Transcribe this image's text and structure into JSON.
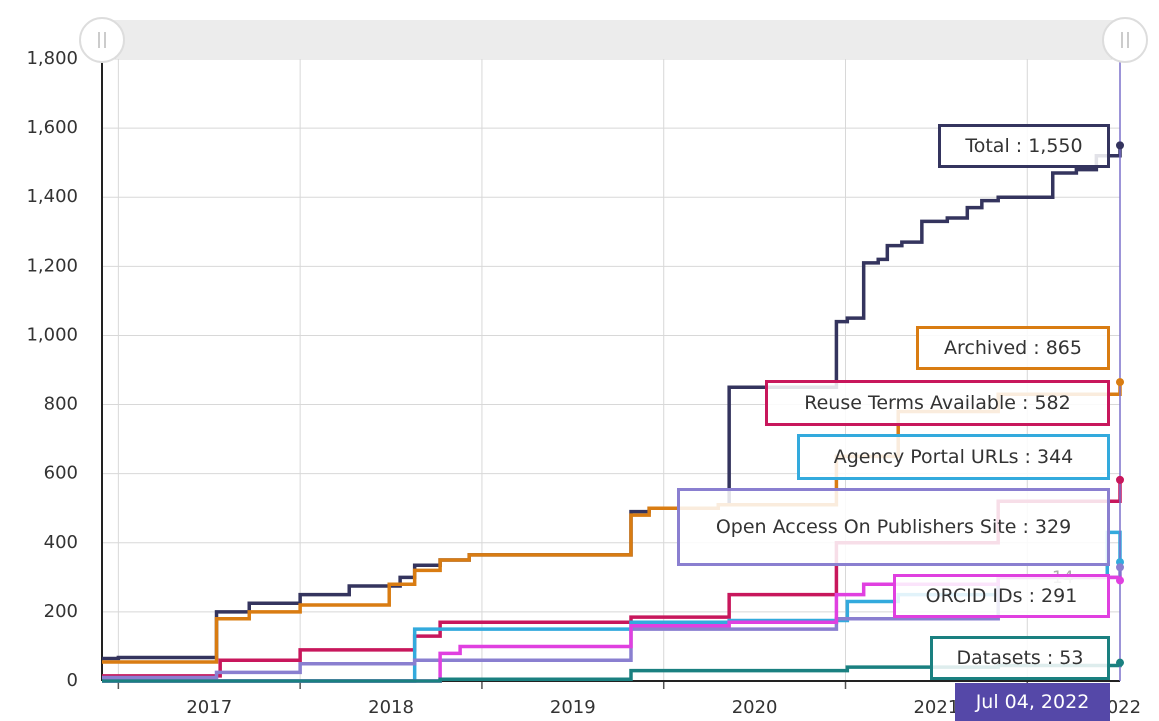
{
  "chart_data": {
    "type": "line",
    "step": true,
    "separator": " : ",
    "crosshair_label": "Jul 04, 2022",
    "annotation": "14",
    "xlim": [
      2016.91,
      2022.51
    ],
    "xticks": [
      {
        "value": 2017.5,
        "label": "2017"
      },
      {
        "value": 2018.5,
        "label": "2018"
      },
      {
        "value": 2019.5,
        "label": "2019"
      },
      {
        "value": 2020.5,
        "label": "2020"
      },
      {
        "value": 2021.5,
        "label": "2021"
      },
      {
        "value": 2022.5,
        "label": "2022"
      }
    ],
    "xgrid": [
      2017,
      2018,
      2019,
      2020,
      2021,
      2022
    ],
    "ylim": [
      0,
      1800
    ],
    "yticks": [
      0,
      200,
      400,
      600,
      800,
      {
        "value": 1000,
        "label": "1,000"
      },
      {
        "value": 1200,
        "label": "1,200"
      },
      {
        "value": 1400,
        "label": "1,400"
      },
      {
        "value": 1600,
        "label": "1,600"
      },
      {
        "value": 1800,
        "label": "1,800"
      }
    ],
    "grid": true,
    "series": [
      {
        "name": "Total",
        "color": "#34345e",
        "last_label": "1,550",
        "x": [
          2016.91,
          2017.0,
          2017.54,
          2017.72,
          2018.0,
          2018.27,
          2018.55,
          2018.63,
          2018.77,
          2018.93,
          2019.82,
          2019.92,
          2020.3,
          2020.36,
          2020.95,
          2021.01,
          2021.1,
          2021.18,
          2021.23,
          2021.31,
          2021.42,
          2021.56,
          2021.67,
          2021.75,
          2021.84,
          2022.14,
          2022.27,
          2022.38,
          2022.51
        ],
        "values": [
          65,
          68,
          200,
          225,
          250,
          275,
          300,
          335,
          350,
          365,
          490,
          500,
          510,
          850,
          1040,
          1050,
          1210,
          1220,
          1260,
          1270,
          1330,
          1340,
          1370,
          1390,
          1400,
          1470,
          1480,
          1520,
          1550
        ]
      },
      {
        "name": "Archived",
        "color": "#d97c12",
        "last_label": "865",
        "x": [
          2016.91,
          2017.54,
          2017.72,
          2018.0,
          2018.49,
          2018.63,
          2018.77,
          2018.93,
          2019.82,
          2019.92,
          2020.3,
          2020.95,
          2021.29,
          2021.84,
          2022.51
        ],
        "values": [
          55,
          180,
          200,
          220,
          280,
          320,
          350,
          365,
          480,
          500,
          510,
          650,
          780,
          830,
          865
        ]
      },
      {
        "name": "Reuse Terms Available",
        "color": "#c8175c",
        "last_label": "582",
        "x": [
          2016.91,
          2017.56,
          2018.0,
          2018.63,
          2018.77,
          2019.82,
          2020.36,
          2020.95,
          2021.84,
          2022.51
        ],
        "values": [
          15,
          60,
          90,
          130,
          170,
          185,
          250,
          400,
          520,
          582
        ]
      },
      {
        "name": "Agency Portal URLs",
        "color": "#33aadd",
        "last_label": "344",
        "x": [
          2016.91,
          2018.63,
          2019.82,
          2020.36,
          2021.01,
          2021.29,
          2021.84,
          2022.44,
          2022.51
        ],
        "values": [
          0,
          150,
          170,
          175,
          230,
          250,
          300,
          430,
          344
        ]
      },
      {
        "name": "Open Access On Publishers Site",
        "color": "#8a7fd0",
        "last_label": "329",
        "x": [
          2016.91,
          2017.54,
          2018.0,
          2018.63,
          2019.82,
          2020.95,
          2021.84,
          2022.51
        ],
        "values": [
          10,
          25,
          50,
          60,
          150,
          180,
          300,
          329
        ]
      },
      {
        "name": "ORCID IDs",
        "color": "#e040e0",
        "last_label": "291",
        "x": [
          2016.91,
          2018.77,
          2018.88,
          2019.82,
          2020.36,
          2020.95,
          2021.1,
          2021.84,
          2022.51
        ],
        "values": [
          0,
          80,
          100,
          160,
          170,
          250,
          280,
          300,
          291
        ]
      },
      {
        "name": "Datasets",
        "color": "#1a8080",
        "last_label": "53",
        "x": [
          2016.91,
          2018.77,
          2019.82,
          2021.01,
          2021.84,
          2022.51
        ],
        "values": [
          0,
          5,
          30,
          40,
          45,
          53
        ]
      }
    ]
  }
}
